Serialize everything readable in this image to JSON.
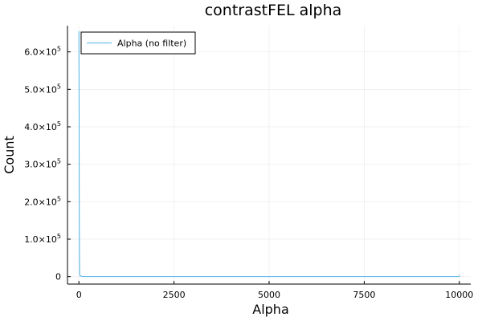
{
  "chart_data": {
    "type": "line",
    "title": "contrastFEL alpha",
    "xlabel": "Alpha",
    "ylabel": "Count",
    "xlim": [
      -300,
      10300
    ],
    "ylim": [
      -20000,
      670000
    ],
    "x_ticks": [
      0,
      2500,
      5000,
      7500,
      10000
    ],
    "x_tick_labels": [
      "0",
      "2500",
      "5000",
      "7500",
      "10000"
    ],
    "y_ticks": [
      0,
      100000,
      200000,
      300000,
      400000,
      500000,
      600000
    ],
    "y_tick_labels": [
      {
        "mantissa": "0",
        "exp": ""
      },
      {
        "mantissa": "1.0×10",
        "exp": "5"
      },
      {
        "mantissa": "2.0×10",
        "exp": "5"
      },
      {
        "mantissa": "3.0×10",
        "exp": "5"
      },
      {
        "mantissa": "4.0×10",
        "exp": "5"
      },
      {
        "mantissa": "5.0×10",
        "exp": "5"
      },
      {
        "mantissa": "6.0×10",
        "exp": "5"
      }
    ],
    "grid": true,
    "legend_position": "top-left",
    "series": [
      {
        "name": "Alpha (no filter)",
        "color": "#4fb3e8",
        "points": [
          [
            0,
            655000
          ],
          [
            5,
            480000
          ],
          [
            10,
            210000
          ],
          [
            15,
            60000
          ],
          [
            20,
            9000
          ],
          [
            30,
            2500
          ],
          [
            60,
            800
          ],
          [
            150,
            200
          ],
          [
            500,
            40
          ],
          [
            1500,
            10
          ],
          [
            3000,
            5
          ],
          [
            5000,
            3
          ],
          [
            7500,
            2
          ],
          [
            9990,
            2
          ],
          [
            10000,
            1800
          ],
          [
            10000,
            0
          ]
        ]
      }
    ]
  }
}
